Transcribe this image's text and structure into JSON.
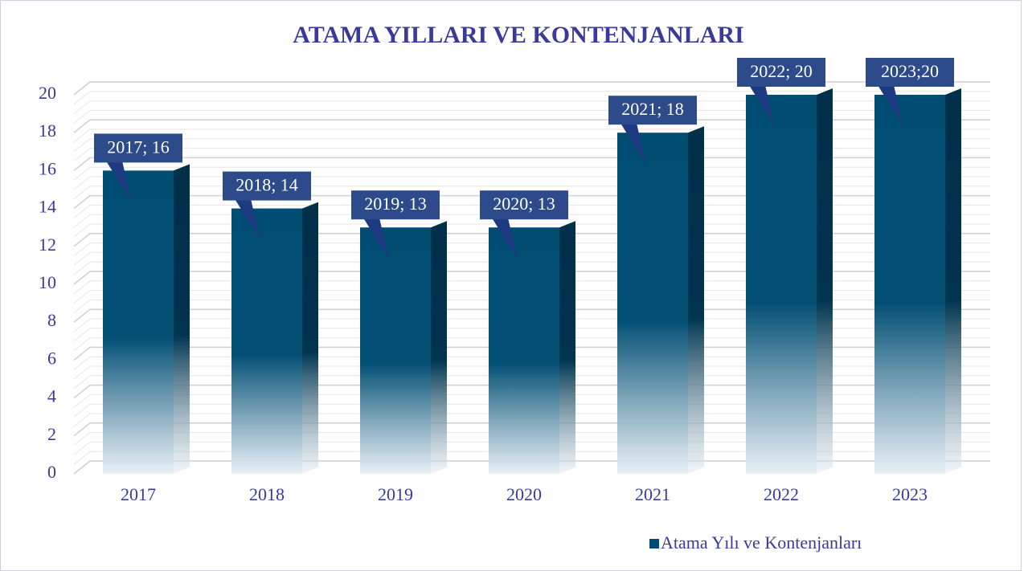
{
  "chart_data": {
    "type": "bar",
    "title": "ATAMA YILLARI VE KONTENJANLARI",
    "categories": [
      "2017",
      "2018",
      "2019",
      "2020",
      "2021",
      "2022",
      "2023"
    ],
    "series": [
      {
        "name": "Atama Yılı ve Kontenjanları",
        "color": "#004d73",
        "values": [
          16,
          14,
          13,
          13,
          18,
          20,
          20
        ],
        "value_labels": [
          "2017; 16",
          "2018; 14",
          "2019; 13",
          "2020; 13",
          "2021; 18",
          "2022; 20",
          "2023;20"
        ]
      }
    ],
    "ylim": [
      0,
      20
    ],
    "yticks": [
      0,
      2,
      4,
      6,
      8,
      10,
      12,
      14,
      16,
      18,
      20
    ],
    "grid": true,
    "legend": "bottom"
  }
}
